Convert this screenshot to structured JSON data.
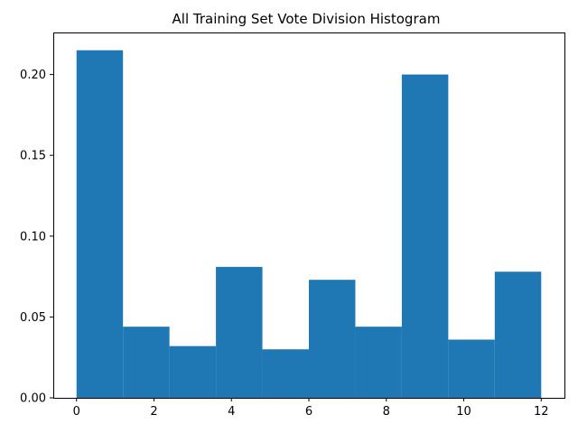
{
  "chart_data": {
    "type": "bar",
    "title": "All Training Set Vote Division Histogram",
    "xlabel": "",
    "ylabel": "",
    "bin_edges": [
      0,
      1.2,
      2.4,
      3.6,
      4.8,
      6.0,
      7.2,
      8.4,
      9.6,
      10.8,
      12.0
    ],
    "values": [
      0.215,
      0.044,
      0.032,
      0.081,
      0.03,
      0.073,
      0.044,
      0.2,
      0.036,
      0.078
    ],
    "xlim": [
      -0.6,
      12.6
    ],
    "ylim": [
      0,
      0.226
    ],
    "xticks": [
      0,
      2,
      4,
      6,
      8,
      10,
      12
    ],
    "xtick_labels": [
      "0",
      "2",
      "4",
      "6",
      "8",
      "10",
      "12"
    ],
    "yticks": [
      0.0,
      0.05,
      0.1,
      0.15,
      0.2
    ],
    "ytick_labels": [
      "0.00",
      "0.05",
      "0.10",
      "0.15",
      "0.20"
    ],
    "grid": false,
    "bar_color": "#1f77b4"
  }
}
